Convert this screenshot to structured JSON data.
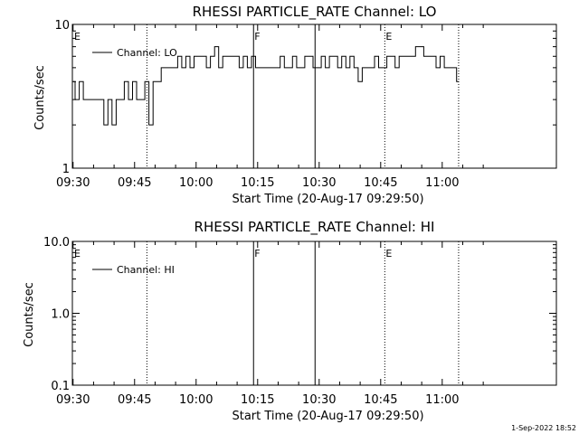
{
  "footer": "1-Sep-2022 18:52",
  "chart_data": [
    {
      "type": "line",
      "title": "RHESSI PARTICLE_RATE Channel: LO",
      "xlabel": "Start Time (20-Aug-17 09:29:50)",
      "ylabel": "Counts/sec",
      "yscale": "log",
      "ylim": [
        1,
        10
      ],
      "y_ticks": [
        "1",
        "10"
      ],
      "x_ticks": [
        "09:30",
        "09:45",
        "10:00",
        "10:15",
        "10:30",
        "10:45",
        "11:00"
      ],
      "legend": "Channel: LO",
      "legend_position": "top-left",
      "flags": [
        {
          "label": "E",
          "time": "09:30",
          "style": "none"
        },
        {
          "label": "F",
          "time": "10:14",
          "style": "solid"
        },
        {
          "label": "E",
          "time": "10:46",
          "style": "dotted"
        }
      ],
      "vertical_lines": [
        {
          "time": "09:48",
          "style": "dotted"
        },
        {
          "time": "10:14",
          "style": "solid"
        },
        {
          "time": "10:29",
          "style": "solid"
        },
        {
          "time": "10:46",
          "style": "dotted"
        },
        {
          "time": "11:04",
          "style": "dotted"
        }
      ],
      "series": [
        {
          "name": "Channel: LO",
          "x": [
            "09:30",
            "09:31",
            "09:32",
            "09:33",
            "09:34",
            "09:35",
            "09:36",
            "09:37",
            "09:38",
            "09:39",
            "09:40",
            "09:41",
            "09:42",
            "09:43",
            "09:44",
            "09:45",
            "09:46",
            "09:47",
            "09:48",
            "09:49",
            "09:50",
            "09:51",
            "09:52",
            "09:53",
            "09:54",
            "09:55",
            "09:56",
            "09:57",
            "09:58",
            "09:59",
            "10:00",
            "10:01",
            "10:02",
            "10:03",
            "10:04",
            "10:05",
            "10:06",
            "10:07",
            "10:08",
            "10:09",
            "10:10",
            "10:11",
            "10:12",
            "10:13",
            "10:14",
            "10:15",
            "10:16",
            "10:17",
            "10:18",
            "10:19",
            "10:20",
            "10:21",
            "10:22",
            "10:23",
            "10:24",
            "10:25",
            "10:26",
            "10:27",
            "10:28",
            "10:29",
            "10:30",
            "10:31",
            "10:32",
            "10:33",
            "10:34",
            "10:35",
            "10:36",
            "10:37",
            "10:38",
            "10:39",
            "10:40",
            "10:41",
            "10:42",
            "10:43",
            "10:44",
            "10:45",
            "10:46",
            "10:47",
            "10:48",
            "10:49",
            "10:50",
            "10:51",
            "10:52",
            "10:53",
            "10:54",
            "10:55",
            "10:56",
            "10:57",
            "10:58",
            "10:59",
            "11:00",
            "11:01",
            "11:02",
            "11:03",
            "11:04"
          ],
          "values": [
            4,
            3,
            4,
            3,
            3,
            3,
            3,
            3,
            2,
            3,
            2,
            3,
            3,
            4,
            3,
            4,
            3,
            3,
            4,
            2,
            4,
            4,
            5,
            5,
            5,
            5,
            6,
            5,
            6,
            5,
            6,
            6,
            6,
            5,
            6,
            7,
            5,
            6,
            6,
            6,
            6,
            5,
            6,
            5,
            6,
            5,
            5,
            5,
            5,
            5,
            5,
            6,
            5,
            5,
            6,
            5,
            5,
            6,
            6,
            5,
            5,
            6,
            5,
            6,
            6,
            5,
            6,
            5,
            6,
            5,
            4,
            5,
            5,
            5,
            6,
            5,
            5,
            6,
            6,
            5,
            6,
            6,
            6,
            6,
            7,
            7,
            6,
            6,
            6,
            5,
            6,
            5,
            5,
            5,
            4
          ]
        }
      ]
    },
    {
      "type": "line",
      "title": "RHESSI PARTICLE_RATE Channel: HI",
      "xlabel": "Start Time (20-Aug-17 09:29:50)",
      "ylabel": "Counts/sec",
      "yscale": "log",
      "ylim": [
        0.1,
        10
      ],
      "y_ticks": [
        "0.1",
        "1.0",
        "10.0"
      ],
      "x_ticks": [
        "09:30",
        "09:45",
        "10:00",
        "10:15",
        "10:30",
        "10:45",
        "11:00"
      ],
      "legend": "Channel: HI",
      "legend_position": "top-left",
      "flags": [
        {
          "label": "E",
          "time": "09:30",
          "style": "none"
        },
        {
          "label": "F",
          "time": "10:14",
          "style": "solid"
        },
        {
          "label": "E",
          "time": "10:46",
          "style": "dotted"
        }
      ],
      "vertical_lines": [
        {
          "time": "09:48",
          "style": "dotted"
        },
        {
          "time": "10:14",
          "style": "solid"
        },
        {
          "time": "10:29",
          "style": "solid"
        },
        {
          "time": "10:46",
          "style": "dotted"
        },
        {
          "time": "11:04",
          "style": "dotted"
        }
      ],
      "series": []
    }
  ]
}
